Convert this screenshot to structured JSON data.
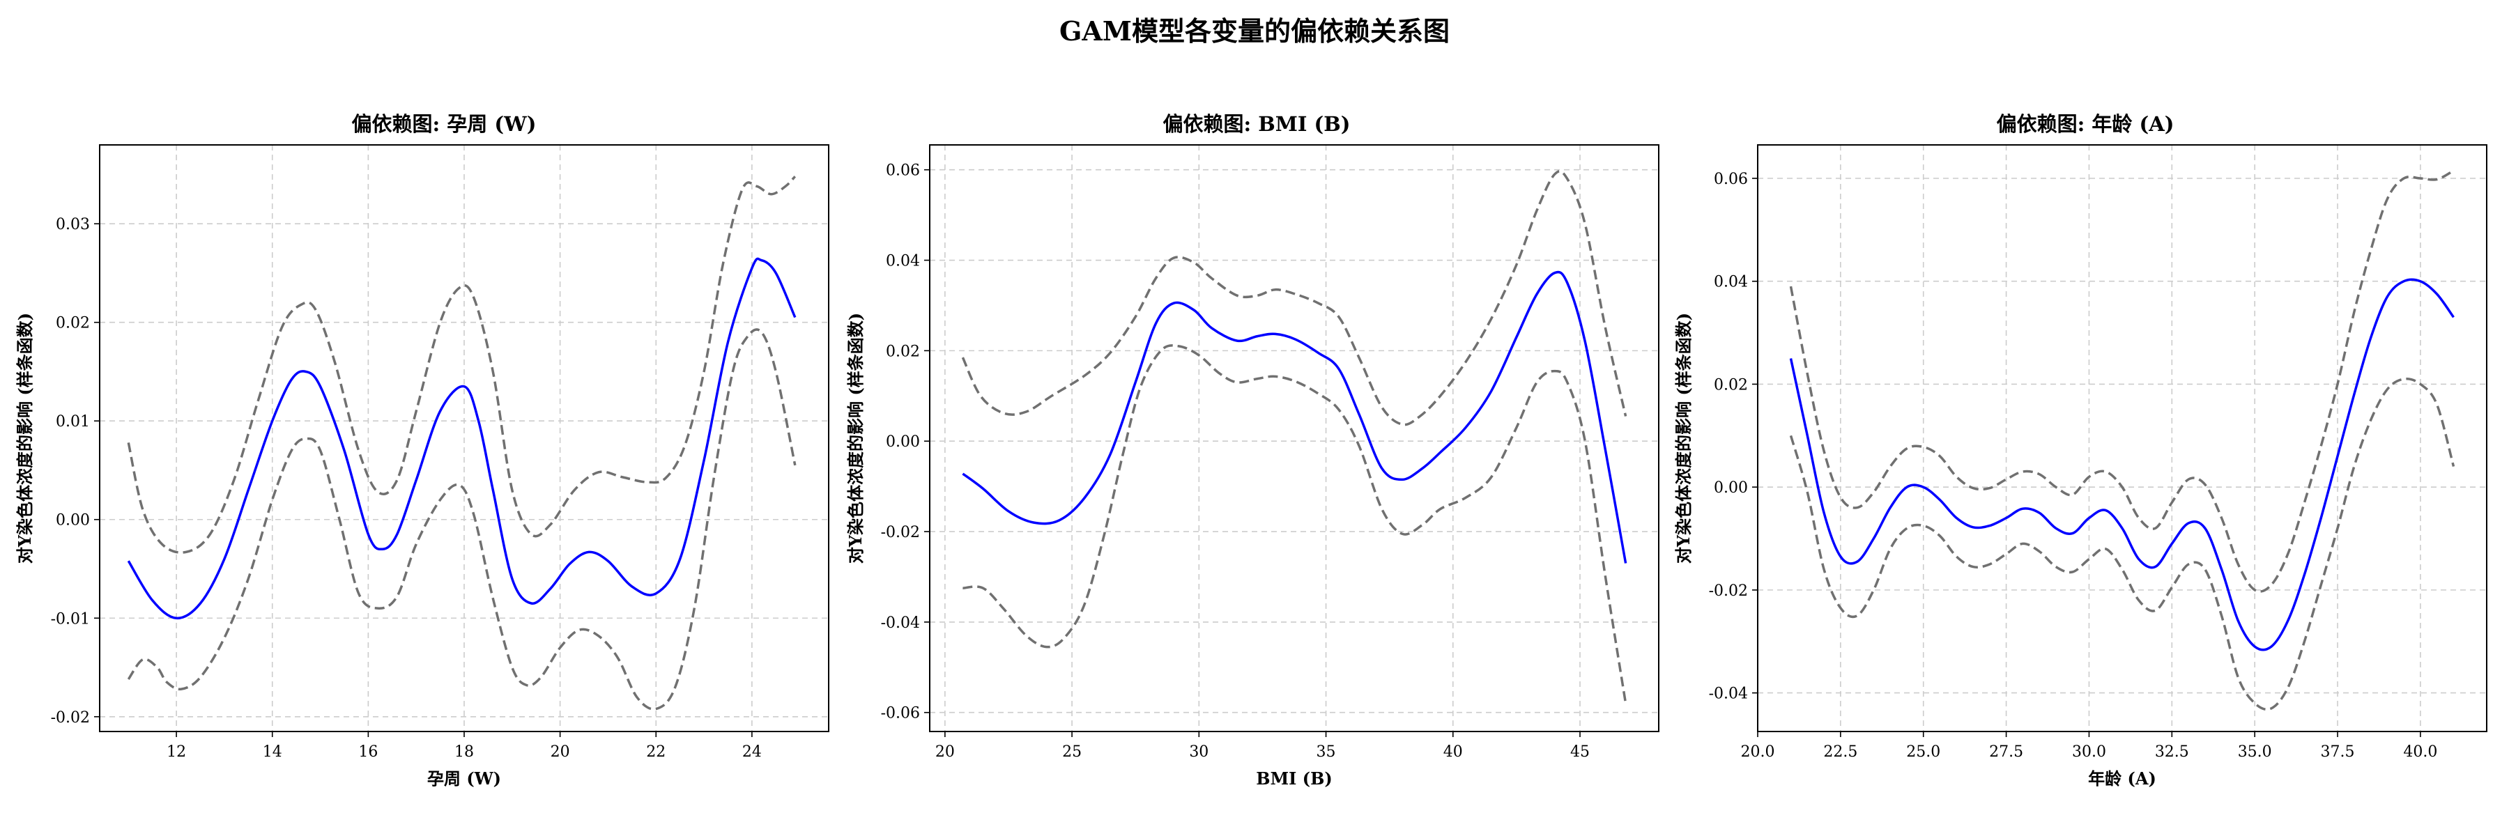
{
  "suptitle": "GAM模型各变量的偏依赖关系图",
  "chart_data": [
    {
      "type": "line",
      "title": "偏依赖图: 孕周 (W)",
      "xlabel": "孕周 (W)",
      "ylabel": "对Y染色体浓度的影响 (样条函数)",
      "xlim": [
        10.4,
        25.6
      ],
      "ylim": [
        -0.0215,
        0.038
      ],
      "xticks": [
        12,
        14,
        16,
        18,
        20,
        22,
        24
      ],
      "yticks": [
        -0.02,
        -0.01,
        0.0,
        0.01,
        0.02,
        0.03
      ],
      "ytick_labels": [
        "-0.02",
        "-0.01",
        "0.00",
        "0.01",
        "0.02",
        "0.03"
      ],
      "grid": true,
      "series": [
        {
          "role": "fit",
          "color": "#0000ff",
          "x": [
            11.0,
            11.5,
            12.0,
            12.5,
            13.0,
            13.5,
            14.0,
            14.4,
            14.7,
            15.0,
            15.5,
            16.0,
            16.3,
            16.6,
            17.0,
            17.5,
            18.0,
            18.3,
            18.6,
            19.0,
            19.4,
            19.8,
            20.2,
            20.6,
            21.0,
            21.5,
            22.0,
            22.5,
            23.0,
            23.5,
            24.0,
            24.2,
            24.5,
            24.9
          ],
          "y": [
            -0.0042,
            -0.0082,
            -0.01,
            -0.0085,
            -0.004,
            0.003,
            0.01,
            0.0142,
            0.015,
            0.0135,
            0.007,
            -0.0015,
            -0.003,
            -0.0015,
            0.004,
            0.011,
            0.0135,
            0.01,
            0.003,
            -0.006,
            -0.0085,
            -0.007,
            -0.0045,
            -0.0033,
            -0.0042,
            -0.0068,
            -0.0075,
            -0.004,
            0.006,
            0.018,
            0.0255,
            0.0263,
            0.025,
            0.0205
          ]
        },
        {
          "role": "ci-upper",
          "color": "#707070",
          "x": [
            11.0,
            11.3,
            11.7,
            12.2,
            12.7,
            13.2,
            13.7,
            14.2,
            14.6,
            14.9,
            15.3,
            15.8,
            16.2,
            16.6,
            17.0,
            17.5,
            17.9,
            18.2,
            18.6,
            19.0,
            19.4,
            19.8,
            20.3,
            20.8,
            21.3,
            21.8,
            22.2,
            22.6,
            23.0,
            23.4,
            23.8,
            24.1,
            24.4,
            24.7,
            24.9
          ],
          "y": [
            0.0078,
            0.001,
            -0.0025,
            -0.0033,
            -0.0015,
            0.004,
            0.012,
            0.0195,
            0.0218,
            0.0213,
            0.016,
            0.007,
            0.0028,
            0.004,
            0.011,
            0.02,
            0.0235,
            0.0225,
            0.015,
            0.003,
            -0.0015,
            -0.0005,
            0.003,
            0.0048,
            0.0043,
            0.0038,
            0.0042,
            0.0075,
            0.015,
            0.026,
            0.0335,
            0.0338,
            0.033,
            0.0338,
            0.0348
          ]
        },
        {
          "role": "ci-lower",
          "color": "#707070",
          "x": [
            11.0,
            11.3,
            11.6,
            11.8,
            12.1,
            12.5,
            13.0,
            13.5,
            14.0,
            14.4,
            14.7,
            15.0,
            15.4,
            15.8,
            16.2,
            16.6,
            17.0,
            17.5,
            17.9,
            18.2,
            18.6,
            19.0,
            19.3,
            19.6,
            20.0,
            20.4,
            20.8,
            21.2,
            21.6,
            22.0,
            22.4,
            22.8,
            23.2,
            23.6,
            23.9,
            24.2,
            24.5,
            24.9
          ],
          "y": [
            -0.0162,
            -0.0142,
            -0.015,
            -0.0165,
            -0.0172,
            -0.016,
            -0.012,
            -0.006,
            0.002,
            0.007,
            0.0082,
            0.007,
            0.0,
            -0.0075,
            -0.009,
            -0.0078,
            -0.0025,
            0.002,
            0.0035,
            0.0005,
            -0.008,
            -0.015,
            -0.0168,
            -0.016,
            -0.013,
            -0.0112,
            -0.0118,
            -0.014,
            -0.018,
            -0.0192,
            -0.017,
            -0.009,
            0.004,
            0.015,
            0.0185,
            0.019,
            0.015,
            0.0055
          ]
        }
      ]
    },
    {
      "type": "line",
      "title": "偏依赖图: BMI (B)",
      "xlabel": "BMI (B)",
      "ylabel": "对Y染色体浓度的影响 (样条函数)",
      "xlim": [
        19.4,
        48.1
      ],
      "ylim": [
        -0.0642,
        0.0655
      ],
      "xticks": [
        20,
        25,
        30,
        35,
        40,
        45
      ],
      "yticks": [
        -0.06,
        -0.04,
        -0.02,
        0.0,
        0.02,
        0.04,
        0.06
      ],
      "ytick_labels": [
        "-0.06",
        "-0.04",
        "-0.02",
        "0.00",
        "0.02",
        "0.04",
        "0.06"
      ],
      "grid": true,
      "series": [
        {
          "role": "fit",
          "color": "#0000ff",
          "x": [
            20.7,
            21.5,
            22.5,
            23.5,
            24.5,
            25.5,
            26.5,
            27.5,
            28.3,
            29.0,
            29.8,
            30.5,
            31.5,
            32.3,
            33.0,
            33.8,
            34.7,
            35.5,
            36.3,
            37.2,
            38.0,
            38.8,
            39.5,
            40.5,
            41.5,
            42.5,
            43.3,
            44.0,
            44.5,
            45.2,
            46.0,
            46.8
          ],
          "y": [
            -0.0072,
            -0.0105,
            -0.0155,
            -0.018,
            -0.0175,
            -0.0125,
            -0.003,
            0.013,
            0.026,
            0.0305,
            0.029,
            0.025,
            0.0222,
            0.0232,
            0.0237,
            0.0225,
            0.0195,
            0.016,
            0.006,
            -0.006,
            -0.0085,
            -0.006,
            -0.0025,
            0.003,
            0.011,
            0.023,
            0.0325,
            0.0372,
            0.035,
            0.022,
            -0.002,
            -0.027
          ]
        },
        {
          "role": "ci-upper",
          "color": "#707070",
          "x": [
            20.7,
            21.4,
            22.3,
            23.2,
            24.2,
            25.5,
            26.5,
            27.5,
            28.3,
            29.0,
            29.8,
            30.5,
            31.5,
            32.3,
            33.0,
            33.8,
            34.7,
            35.5,
            36.3,
            37.2,
            38.0,
            38.7,
            39.5,
            40.5,
            41.5,
            42.5,
            43.3,
            44.0,
            44.5,
            45.2,
            46.0,
            46.8
          ],
          "y": [
            0.0185,
            0.01,
            0.0062,
            0.0065,
            0.01,
            0.0145,
            0.0195,
            0.0275,
            0.036,
            0.0405,
            0.0395,
            0.036,
            0.0322,
            0.0322,
            0.0335,
            0.0325,
            0.0305,
            0.0275,
            0.0185,
            0.0075,
            0.0037,
            0.0055,
            0.01,
            0.0175,
            0.027,
            0.039,
            0.051,
            0.059,
            0.058,
            0.048,
            0.025,
            0.0055
          ]
        },
        {
          "role": "ci-lower",
          "color": "#707070",
          "x": [
            20.7,
            21.5,
            22.3,
            23.2,
            24.0,
            24.7,
            25.5,
            26.3,
            27.0,
            27.7,
            28.5,
            29.2,
            30.0,
            30.8,
            31.5,
            32.3,
            33.0,
            33.8,
            34.7,
            35.5,
            36.3,
            37.2,
            38.0,
            38.8,
            39.5,
            40.5,
            41.5,
            42.5,
            43.3,
            44.0,
            44.5,
            45.2,
            46.0,
            46.8
          ],
          "y": [
            -0.0325,
            -0.0325,
            -0.037,
            -0.043,
            -0.0455,
            -0.0435,
            -0.036,
            -0.02,
            -0.003,
            0.012,
            0.02,
            0.021,
            0.019,
            0.015,
            0.013,
            0.0138,
            0.0143,
            0.0132,
            0.0105,
            0.007,
            -0.001,
            -0.015,
            -0.0205,
            -0.0185,
            -0.015,
            -0.0125,
            -0.008,
            0.003,
            0.013,
            0.0155,
            0.013,
            0.0,
            -0.03,
            -0.058
          ]
        }
      ]
    },
    {
      "type": "line",
      "title": "偏依赖图: 年龄 (A)",
      "xlabel": "年龄 (A)",
      "ylabel": "对Y染色体浓度的影响 (样条函数)",
      "xlim": [
        20.0,
        42.0
      ],
      "ylim": [
        -0.0475,
        0.0665
      ],
      "xticks": [
        20.0,
        22.5,
        25.0,
        27.5,
        30.0,
        32.5,
        35.0,
        37.5,
        40.0
      ],
      "xtick_labels": [
        "20.0",
        "22.5",
        "25.0",
        "27.5",
        "30.0",
        "32.5",
        "35.0",
        "37.5",
        "40.0"
      ],
      "yticks": [
        -0.04,
        -0.02,
        0.0,
        0.02,
        0.04,
        0.06
      ],
      "ytick_labels": [
        "-0.04",
        "-0.02",
        "0.00",
        "0.02",
        "0.04",
        "0.06"
      ],
      "grid": true,
      "series": [
        {
          "role": "fit",
          "color": "#0000ff",
          "x": [
            21.0,
            21.5,
            22.0,
            22.5,
            23.0,
            23.5,
            24.0,
            24.5,
            25.0,
            25.5,
            26.0,
            26.5,
            27.0,
            27.5,
            28.0,
            28.5,
            29.0,
            29.5,
            30.0,
            30.5,
            31.0,
            31.5,
            32.0,
            32.5,
            33.0,
            33.5,
            34.0,
            34.5,
            35.0,
            35.5,
            36.0,
            36.5,
            37.0,
            37.5,
            38.0,
            38.5,
            39.0,
            39.5,
            40.0,
            40.5,
            41.0
          ],
          "y": [
            0.025,
            0.01,
            -0.005,
            -0.0135,
            -0.0145,
            -0.01,
            -0.004,
            0.0,
            0.0,
            -0.0025,
            -0.006,
            -0.0078,
            -0.0075,
            -0.006,
            -0.0042,
            -0.005,
            -0.008,
            -0.009,
            -0.006,
            -0.0045,
            -0.008,
            -0.014,
            -0.0155,
            -0.011,
            -0.007,
            -0.008,
            -0.016,
            -0.026,
            -0.031,
            -0.031,
            -0.026,
            -0.017,
            -0.006,
            0.006,
            0.018,
            0.029,
            0.037,
            0.04,
            0.04,
            0.0375,
            0.033
          ]
        },
        {
          "role": "ci-upper",
          "color": "#707070",
          "x": [
            21.0,
            21.5,
            22.0,
            22.5,
            23.0,
            23.5,
            24.0,
            24.5,
            25.0,
            25.5,
            26.0,
            26.5,
            27.0,
            27.5,
            28.0,
            28.5,
            29.0,
            29.5,
            30.0,
            30.5,
            31.0,
            31.5,
            32.0,
            32.5,
            33.0,
            33.5,
            34.0,
            34.5,
            35.0,
            35.5,
            36.0,
            36.5,
            37.0,
            37.5,
            38.0,
            38.5,
            39.0,
            39.5,
            40.0,
            40.5,
            41.0
          ],
          "y": [
            0.039,
            0.022,
            0.007,
            -0.002,
            -0.004,
            -0.001,
            0.004,
            0.0075,
            0.0078,
            0.006,
            0.002,
            -0.0002,
            -0.0002,
            0.0015,
            0.003,
            0.0025,
            0.0,
            -0.0015,
            0.002,
            0.003,
            0.0,
            -0.006,
            -0.008,
            -0.003,
            0.0015,
            0.0005,
            -0.006,
            -0.015,
            -0.02,
            -0.019,
            -0.013,
            -0.003,
            0.008,
            0.02,
            0.034,
            0.046,
            0.056,
            0.06,
            0.06,
            0.0598,
            0.0615
          ]
        },
        {
          "role": "ci-lower",
          "color": "#707070",
          "x": [
            21.0,
            21.5,
            22.0,
            22.5,
            23.0,
            23.5,
            24.0,
            24.5,
            25.0,
            25.5,
            26.0,
            26.5,
            27.0,
            27.5,
            28.0,
            28.5,
            29.0,
            29.5,
            30.0,
            30.5,
            31.0,
            31.5,
            32.0,
            32.5,
            33.0,
            33.5,
            34.0,
            34.5,
            35.0,
            35.5,
            36.0,
            36.5,
            37.0,
            37.5,
            38.0,
            38.5,
            39.0,
            39.5,
            40.0,
            40.5,
            41.0
          ],
          "y": [
            0.01,
            -0.001,
            -0.016,
            -0.0235,
            -0.025,
            -0.02,
            -0.012,
            -0.008,
            -0.0075,
            -0.0095,
            -0.0135,
            -0.0155,
            -0.015,
            -0.013,
            -0.011,
            -0.0125,
            -0.0155,
            -0.0165,
            -0.014,
            -0.012,
            -0.016,
            -0.022,
            -0.024,
            -0.0195,
            -0.015,
            -0.016,
            -0.025,
            -0.037,
            -0.042,
            -0.043,
            -0.039,
            -0.03,
            -0.019,
            -0.008,
            0.004,
            0.013,
            0.019,
            0.021,
            0.02,
            0.016,
            0.004
          ]
        }
      ]
    }
  ]
}
